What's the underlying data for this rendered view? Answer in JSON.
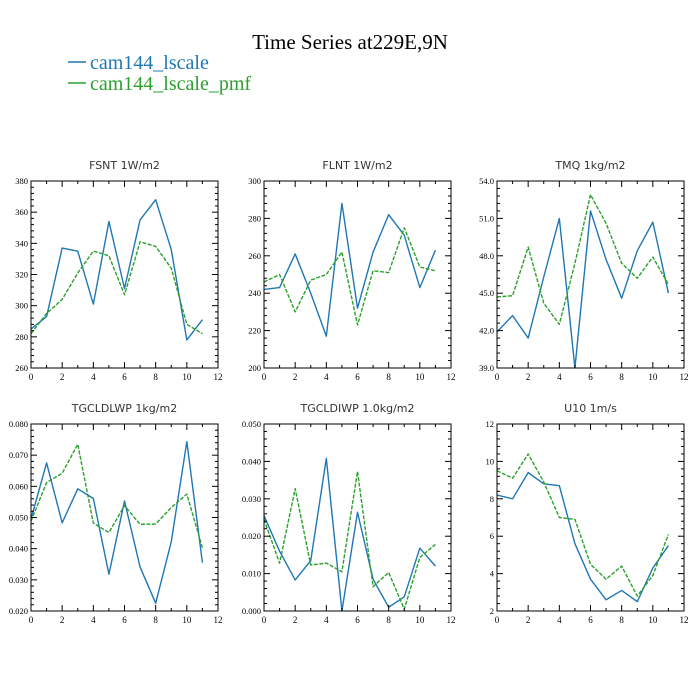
{
  "figure": {
    "title": "Time Series at229E,9N",
    "legend": {
      "placement": "top-left",
      "entries": [
        {
          "label": "cam144_lscale",
          "color": "#1f77b4",
          "dash": "solid"
        },
        {
          "label": "cam144_lscale_pmf",
          "color": "#2ca02c",
          "dash": "dashed"
        }
      ]
    }
  },
  "chart_data": [
    {
      "type": "line",
      "title": "FSNT   1W/m2",
      "xlim": [
        0,
        12
      ],
      "ylim": [
        260,
        380
      ],
      "xticks": [
        "0",
        "2",
        "4",
        "6",
        "8",
        "10",
        "12"
      ],
      "yticks": [
        "260",
        "280",
        "300",
        "320",
        "340",
        "360",
        "380"
      ],
      "x": [
        0,
        1,
        2,
        3,
        4,
        5,
        6,
        7,
        8,
        9,
        10,
        11
      ],
      "series": [
        {
          "name": "cam144_lscale",
          "values": [
            285,
            293,
            337,
            335,
            301,
            354,
            311,
            355,
            368,
            336,
            278,
            291
          ]
        },
        {
          "name": "cam144_lscale_pmf",
          "values": [
            282,
            295,
            304,
            321,
            335,
            332,
            307,
            341,
            338,
            324,
            288,
            282
          ]
        }
      ]
    },
    {
      "type": "line",
      "title": "FLNT   1W/m2",
      "xlim": [
        0,
        12
      ],
      "ylim": [
        200,
        300
      ],
      "xticks": [
        "0",
        "2",
        "4",
        "6",
        "8",
        "10",
        "12"
      ],
      "yticks": [
        "200",
        "220",
        "240",
        "260",
        "280",
        "300"
      ],
      "x": [
        0,
        1,
        2,
        3,
        4,
        5,
        6,
        7,
        8,
        9,
        10,
        11
      ],
      "series": [
        {
          "name": "cam144_lscale",
          "values": [
            242,
            243,
            261,
            240,
            217,
            288,
            232,
            262,
            282,
            271,
            243,
            263
          ]
        },
        {
          "name": "cam144_lscale_pmf",
          "values": [
            246,
            250,
            230,
            247,
            250,
            262,
            223,
            252,
            251,
            275,
            254,
            252
          ]
        }
      ]
    },
    {
      "type": "line",
      "title": "TMQ   1kg/m2",
      "xlim": [
        0,
        12
      ],
      "ylim": [
        39.0,
        54.0
      ],
      "xticks": [
        "0",
        "2",
        "4",
        "6",
        "8",
        "10",
        "12"
      ],
      "yticks": [
        "39.0",
        "42.0",
        "45.0",
        "48.0",
        "51.0",
        "54.0"
      ],
      "x": [
        0,
        1,
        2,
        3,
        4,
        5,
        6,
        7,
        8,
        9,
        10,
        11
      ],
      "series": [
        {
          "name": "cam144_lscale",
          "values": [
            41.9,
            43.2,
            41.4,
            46.3,
            51.0,
            39.0,
            51.6,
            47.7,
            44.6,
            48.4,
            50.7,
            45.0
          ]
        },
        {
          "name": "cam144_lscale_pmf",
          "values": [
            44.7,
            44.8,
            48.7,
            44.2,
            42.5,
            47.4,
            52.9,
            50.6,
            47.4,
            46.2,
            47.9,
            45.7
          ]
        }
      ]
    },
    {
      "type": "line",
      "title": "TGCLDLWP   1kg/m2",
      "xlim": [
        0,
        12
      ],
      "ylim": [
        0.02,
        0.08
      ],
      "xticks": [
        "0",
        "2",
        "4",
        "6",
        "8",
        "10",
        "12"
      ],
      "yticks": [
        "0.020",
        "0.030",
        "0.040",
        "0.050",
        "0.060",
        "0.070",
        "0.080"
      ],
      "x": [
        0,
        1,
        2,
        3,
        4,
        5,
        6,
        7,
        8,
        9,
        10,
        11
      ],
      "series": [
        {
          "name": "cam144_lscale",
          "values": [
            0.0495,
            0.0675,
            0.0483,
            0.0592,
            0.0561,
            0.0318,
            0.0553,
            0.0341,
            0.0225,
            0.0422,
            0.0743,
            0.0355
          ]
        },
        {
          "name": "cam144_lscale_pmf",
          "values": [
            0.0488,
            0.0612,
            0.0642,
            0.0735,
            0.0482,
            0.0452,
            0.0538,
            0.0478,
            0.0479,
            0.0532,
            0.0575,
            0.0403
          ]
        }
      ]
    },
    {
      "type": "line",
      "title": "TGCLDIWP   1.0kg/m2",
      "xlim": [
        0,
        12
      ],
      "ylim": [
        0.0,
        0.05
      ],
      "xticks": [
        "0",
        "2",
        "4",
        "6",
        "8",
        "10",
        "12"
      ],
      "yticks": [
        "0.000",
        "0.010",
        "0.020",
        "0.030",
        "0.040",
        "0.050"
      ],
      "x": [
        0,
        1,
        2,
        3,
        4,
        5,
        6,
        7,
        8,
        9,
        10,
        11
      ],
      "series": [
        {
          "name": "cam144_lscale",
          "values": [
            0.0255,
            0.016,
            0.0083,
            0.0135,
            0.0408,
            0.0,
            0.0264,
            0.0085,
            0.001,
            0.0038,
            0.0168,
            0.012
          ]
        },
        {
          "name": "cam144_lscale_pmf",
          "values": [
            0.0245,
            0.0128,
            0.0327,
            0.0123,
            0.0128,
            0.0105,
            0.0373,
            0.0065,
            0.0103,
            0.0005,
            0.0143,
            0.0178
          ]
        }
      ]
    },
    {
      "type": "line",
      "title": "U10   1m/s",
      "xlim": [
        0,
        12
      ],
      "ylim": [
        2,
        12
      ],
      "xticks": [
        "0",
        "2",
        "4",
        "6",
        "8",
        "10",
        "12"
      ],
      "yticks": [
        "2",
        "4",
        "6",
        "8",
        "10",
        "12"
      ],
      "x": [
        0,
        1,
        2,
        3,
        4,
        5,
        6,
        7,
        8,
        9,
        10,
        11
      ],
      "series": [
        {
          "name": "cam144_lscale",
          "values": [
            8.2,
            8.0,
            9.4,
            8.8,
            8.7,
            5.6,
            3.7,
            2.6,
            3.1,
            2.5,
            4.3,
            5.5
          ]
        },
        {
          "name": "cam144_lscale_pmf",
          "values": [
            9.5,
            9.1,
            10.4,
            8.9,
            7.0,
            6.9,
            4.5,
            3.7,
            4.4,
            2.8,
            3.9,
            6.1
          ]
        }
      ]
    }
  ]
}
